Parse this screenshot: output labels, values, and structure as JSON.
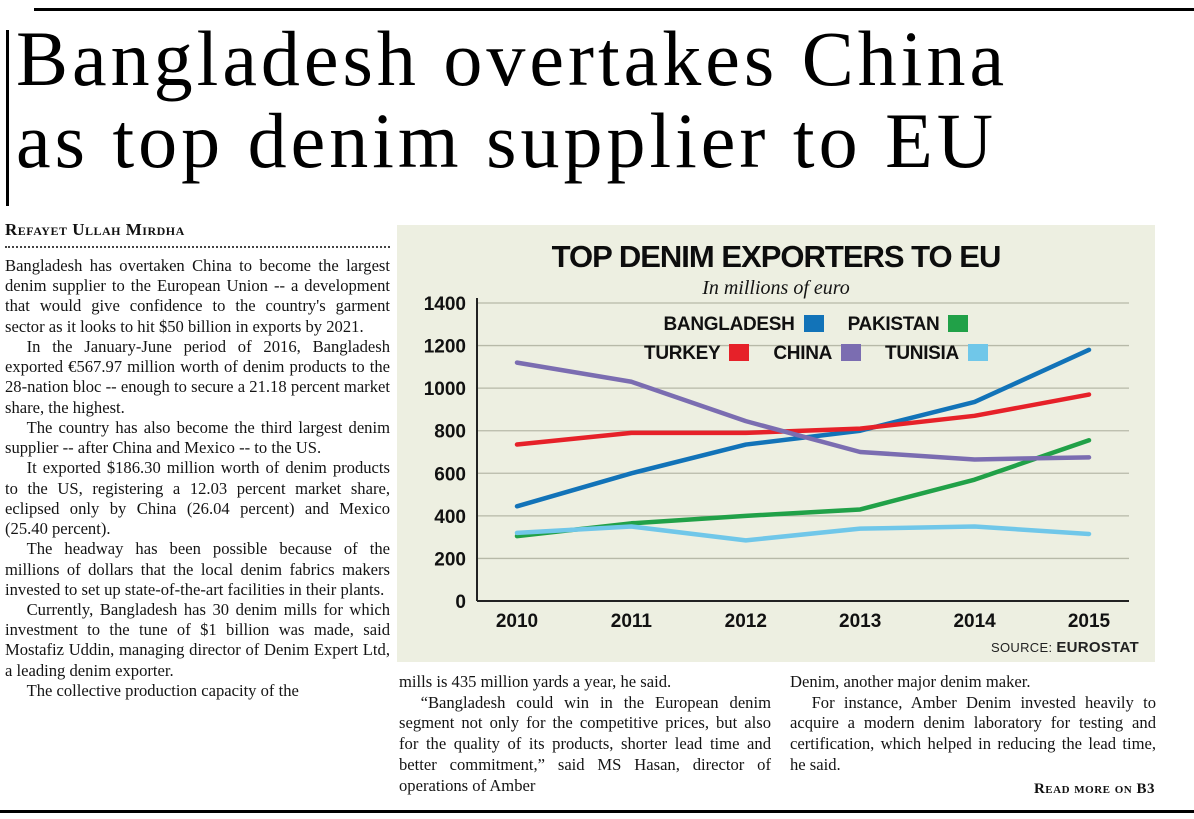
{
  "page": {
    "headline_line1": "Bangladesh overtakes China",
    "headline_line2": "as top denim supplier to EU",
    "byline": "Refayet Ullah Mirdha",
    "read_more": "Read more on B3"
  },
  "article": {
    "col1": [
      "Bangladesh has overtaken China to become the largest denim supplier to the European Union -- a development that would give confidence to the country's garment sector as it looks to hit $50 billion in exports by 2021.",
      "In the January-June period of 2016, Bangladesh exported €567.97 million worth of denim products to the 28-nation bloc -- enough to secure a 21.18 percent market share, the highest.",
      "The country has also become the third largest denim supplier -- after China and Mexico -- to the US.",
      "It exported $186.30 million worth of denim products to the US, registering a 12.03 percent market share, eclipsed only by China (26.04 percent) and Mexico (25.40 percent).",
      "The headway has been possible because of the millions of dollars that the local denim fabrics makers invested to set up state-of-the-art facilities in their plants.",
      "Currently, Bangladesh has 30 denim mills for which investment to the tune of $1 billion was made, said Mostafiz Uddin, managing director of Denim Expert Ltd, a leading denim exporter.",
      "The collective production capacity of the"
    ],
    "col2": [
      "mills is 435 million yards a year, he said.",
      "“Bangladesh could win in the European denim segment not only for the competitive prices, but also for the quality of its products, shorter lead time and better commitment,” said MS Hasan, director of operations of Amber"
    ],
    "col3": [
      "Denim, another major denim maker.",
      "For instance, Amber Denim invested heavily to acquire a modern denim laboratory for testing and certification, which helped in reducing the lead time, he said."
    ]
  },
  "chart": {
    "source_label": "SOURCE:",
    "source_value": "EUROSTAT"
  },
  "chart_data": {
    "type": "line",
    "title": "TOP DENIM EXPORTERS TO EU",
    "subtitle": "In millions of euro",
    "x": [
      "2010",
      "2011",
      "2012",
      "2013",
      "2014",
      "2015"
    ],
    "series": [
      {
        "name": "BANGLADESH",
        "color": "#1273b8",
        "values": [
          445,
          600,
          735,
          800,
          935,
          1180
        ]
      },
      {
        "name": "PAKISTAN",
        "color": "#21a148",
        "values": [
          305,
          365,
          400,
          430,
          570,
          755
        ]
      },
      {
        "name": "TURKEY",
        "color": "#e62129",
        "values": [
          735,
          790,
          790,
          810,
          870,
          970
        ]
      },
      {
        "name": "CHINA",
        "color": "#7b6db1",
        "values": [
          1120,
          1030,
          845,
          700,
          665,
          675
        ]
      },
      {
        "name": "TUNISIA",
        "color": "#70c7e9",
        "values": [
          320,
          350,
          285,
          340,
          350,
          315
        ]
      }
    ],
    "legend_rows": [
      [
        "BANGLADESH",
        "PAKISTAN"
      ],
      [
        "TURKEY",
        "CHINA",
        "TUNISIA"
      ]
    ],
    "ylim": [
      0,
      1400
    ],
    "yticks": [
      0,
      200,
      400,
      600,
      800,
      1000,
      1200,
      1400
    ],
    "grid": "horizontal",
    "legend_position": "top-center",
    "background": "#edefe1",
    "source": "EUROSTAT"
  }
}
